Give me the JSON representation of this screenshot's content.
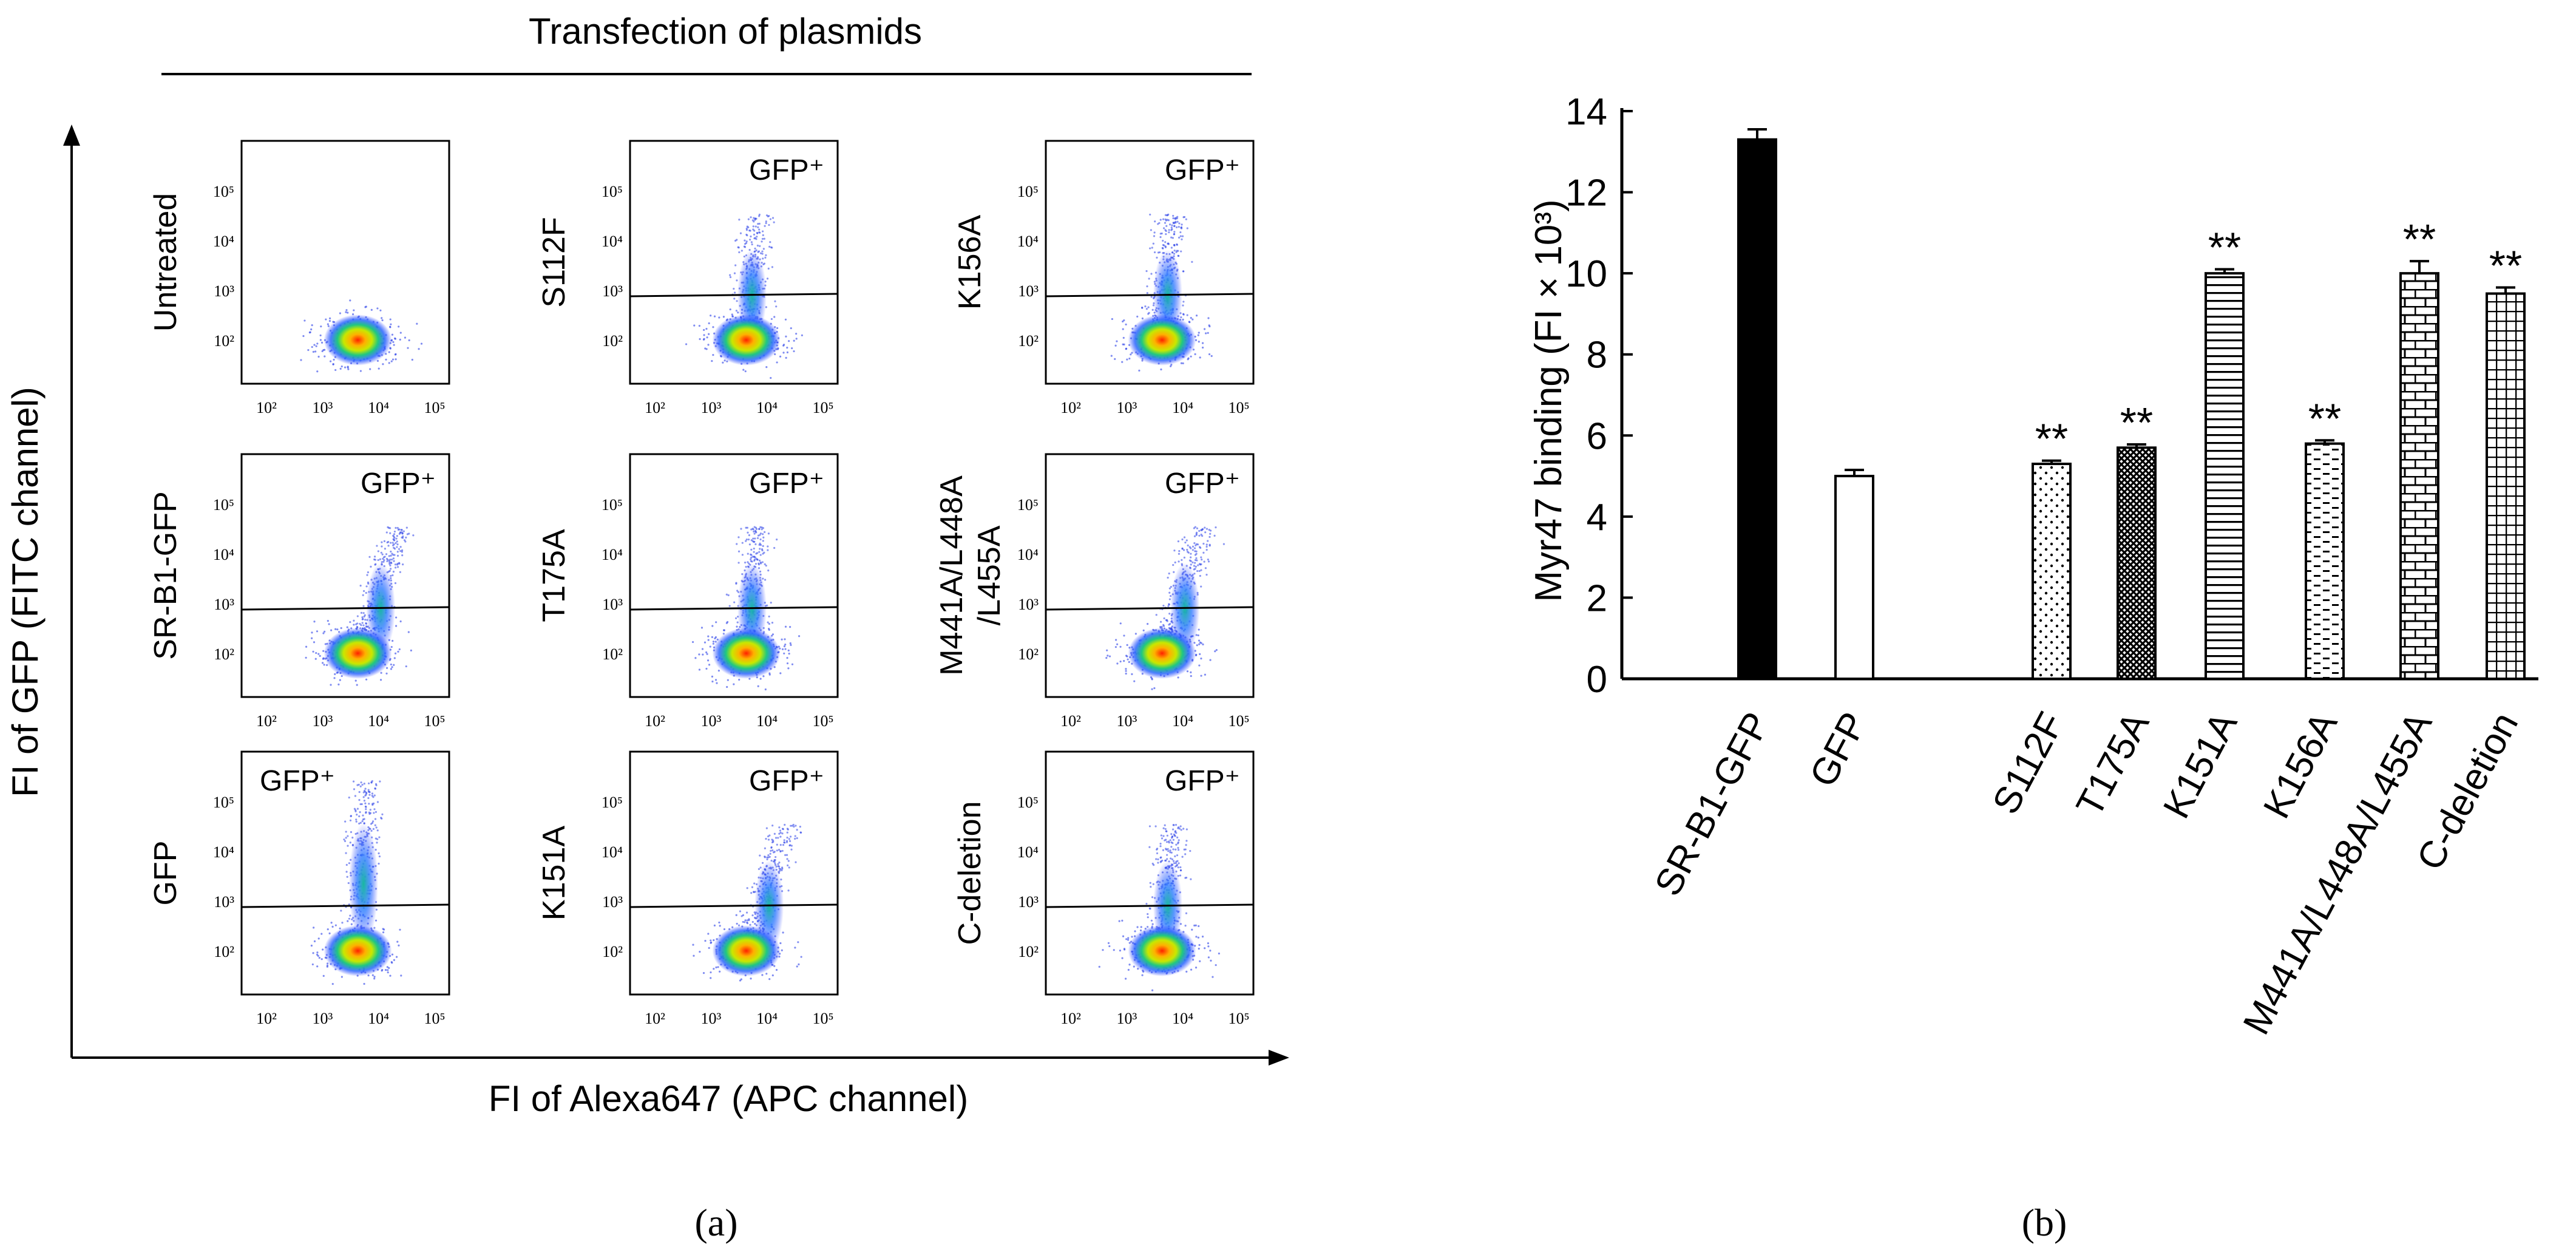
{
  "panel_a": {
    "title": "Transfection of plasmids",
    "xlabel": "FI of Alexa647 (APC channel)",
    "ylabel": "FI of GFP (FITC channel)",
    "caption": "(a)",
    "axis_ticks": [
      "10²",
      "10³",
      "10⁴",
      "10⁵"
    ],
    "plots": [
      {
        "label": "Untreated",
        "gate": ""
      },
      {
        "label": "S112F",
        "gate": "GFP⁺"
      },
      {
        "label": "K156A",
        "gate": "GFP⁺"
      },
      {
        "label": "SR-B1-GFP",
        "gate": "GFP⁺"
      },
      {
        "label": "T175A",
        "gate": "GFP⁺"
      },
      {
        "label": "M441A/L448A\n/L455A",
        "gate": "GFP⁺"
      },
      {
        "label": "GFP",
        "gate": "GFP⁺"
      },
      {
        "label": "K151A",
        "gate": "GFP⁺"
      },
      {
        "label": "C-deletion",
        "gate": "GFP⁺"
      }
    ]
  },
  "chart_data": {
    "type": "bar",
    "title": "",
    "ylabel": "Myr47 binding (FI × 10³)",
    "xlabel": "",
    "ylim": [
      0,
      14
    ],
    "yticks": [
      "0",
      "2",
      "4",
      "6",
      "8",
      "10",
      "12",
      "14"
    ],
    "categories": [
      "SR-B1-GFP",
      "GFP",
      "S112F",
      "T175A",
      "K151A",
      "K156A",
      "M441A/L448A/L455A",
      "C-deletion"
    ],
    "values": [
      13.3,
      5.0,
      5.3,
      5.7,
      10.0,
      5.8,
      10.0,
      9.5
    ],
    "errors": [
      0.25,
      0.15,
      0.08,
      0.08,
      0.1,
      0.08,
      0.3,
      0.15
    ],
    "significance": [
      "",
      "",
      "**",
      "**",
      "**",
      "**",
      "**",
      "**"
    ],
    "fill_patterns": [
      "solid",
      "open",
      "dots",
      "crosshatch",
      "hlines",
      "dashes",
      "brick",
      "grid"
    ],
    "caption": "(b)"
  }
}
